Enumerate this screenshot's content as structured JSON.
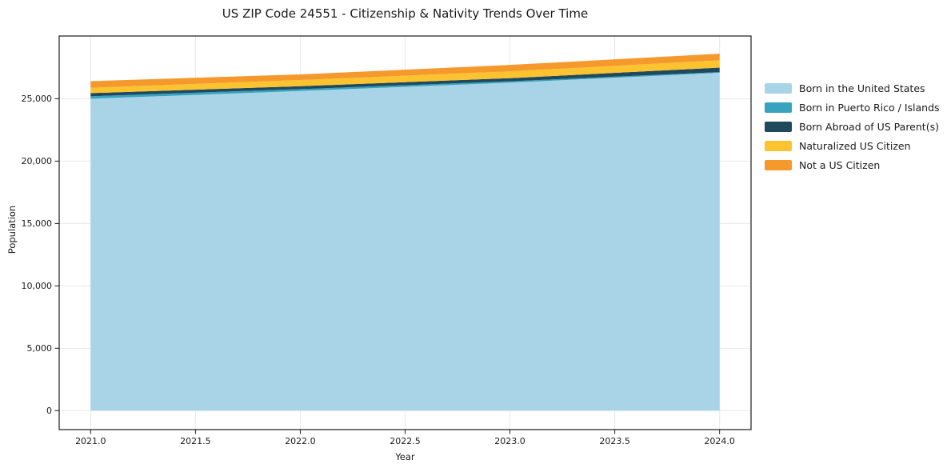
{
  "chart_data": {
    "type": "area",
    "stacked": true,
    "title": "US ZIP Code 24551 - Citizenship & Nativity Trends Over Time",
    "xlabel": "Year",
    "ylabel": "Population",
    "x": [
      2021,
      2022,
      2023,
      2024
    ],
    "series": [
      {
        "name": "Born in the United States",
        "color": "#A9D4E7",
        "values": [
          25000,
          25620,
          26290,
          27080
        ]
      },
      {
        "name": "Born in Puerto Rico / Islands",
        "color": "#37A3BF",
        "values": [
          200,
          150,
          110,
          60
        ]
      },
      {
        "name": "Born Abroad of US Parent(s)",
        "color": "#1F4A5E",
        "values": [
          250,
          240,
          250,
          360
        ]
      },
      {
        "name": "Naturalized US Citizen",
        "color": "#FCC330",
        "values": [
          430,
          490,
          550,
          580
        ]
      },
      {
        "name": "Not a US Citizen",
        "color": "#F6992C",
        "values": [
          530,
          450,
          510,
          530
        ]
      }
    ],
    "xlim": [
      2020.85,
      2024.15
    ],
    "ylim": [
      -1520,
      30030
    ],
    "xtick_values": [
      2021.0,
      2021.5,
      2022.0,
      2022.5,
      2023.0,
      2023.5,
      2024.0
    ],
    "xtick_labels": [
      "2021.0",
      "2021.5",
      "2022.0",
      "2022.5",
      "2023.0",
      "2023.5",
      "2024.0"
    ],
    "ytick_values": [
      0,
      5000,
      10000,
      15000,
      20000,
      25000
    ],
    "ytick_labels": [
      "0",
      "5,000",
      "10,000",
      "15,000",
      "20,000",
      "25,000"
    ],
    "grid": true,
    "legend_position": "right"
  },
  "colors": {
    "background": "#ffffff",
    "grid": "#e8e8e8",
    "spine": "#1a1a1a",
    "text": "#1a1a1a"
  }
}
